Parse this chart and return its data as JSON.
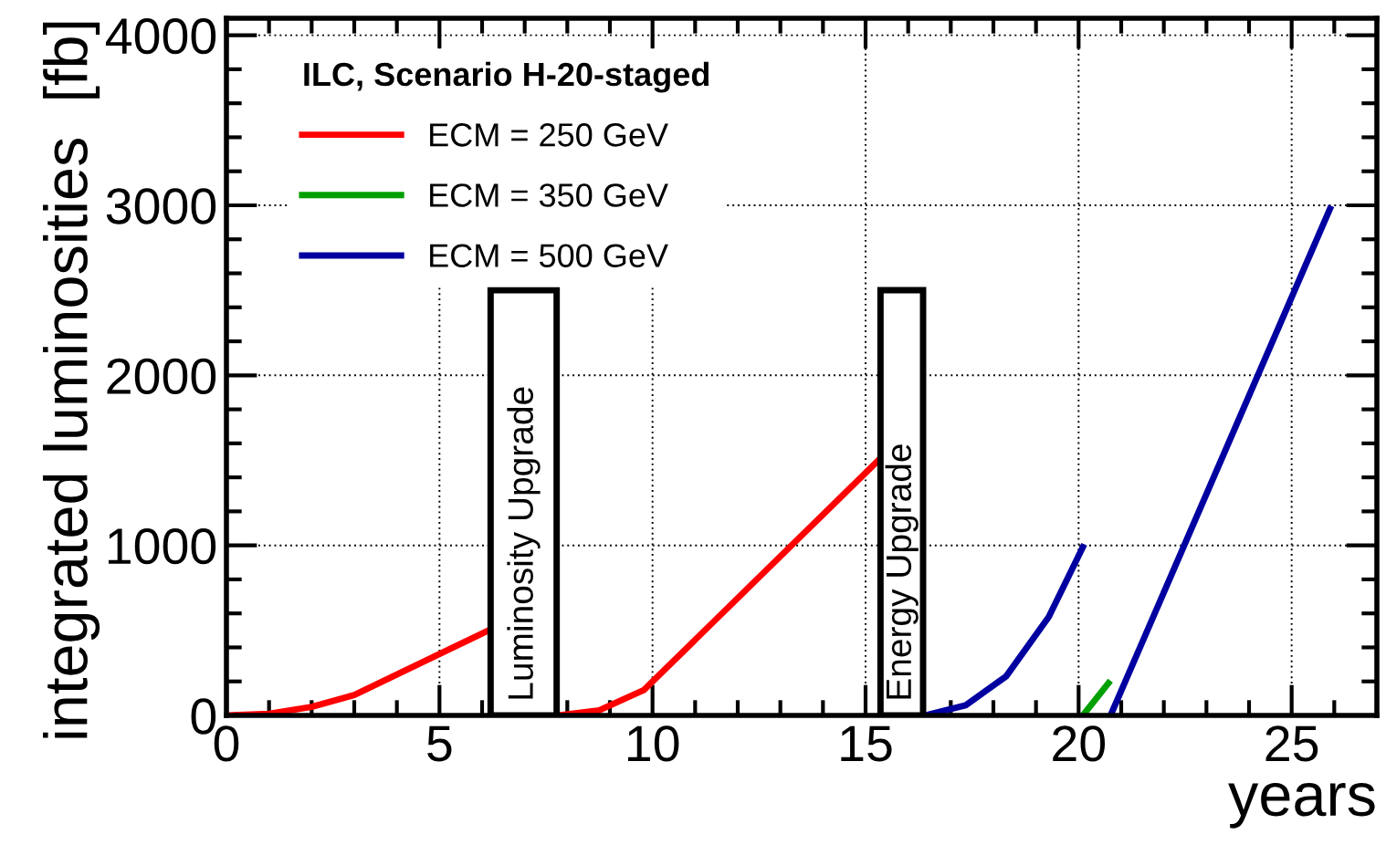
{
  "chart_data": {
    "type": "line",
    "xlabel": "years",
    "ylabel": "integrated luminosities  [fb]",
    "legend_title": "ILC, Scenario H-20-staged",
    "series": [
      {
        "name": "ECM = 250 GeV",
        "color": "#ff0000",
        "x": [
          0,
          1,
          2,
          3,
          6.15,
          null,
          7.8,
          8.75,
          9.8,
          15.3
        ],
        "values": [
          0,
          10,
          50,
          120,
          500,
          null,
          0,
          30,
          150,
          1500
        ]
      },
      {
        "name": "ECM = 350 GeV",
        "color": "#00a000",
        "x": [
          20.1,
          20.7
        ],
        "values": [
          0,
          190
        ]
      },
      {
        "name": "ECM = 500 GeV",
        "color": "#0000a0",
        "x": [
          16.4,
          17.35,
          18.3,
          19.3,
          20.1,
          null,
          20.75,
          25.9
        ],
        "values": [
          0,
          60,
          230,
          580,
          990,
          null,
          0,
          2980
        ]
      }
    ],
    "bands": [
      {
        "axis": "x",
        "from": 6.2,
        "to": 7.75,
        "label": "Luminosity Upgrade",
        "color": "#000000"
      },
      {
        "axis": "x",
        "from": 15.35,
        "to": 16.35,
        "label": "Energy Upgrade",
        "color": "#000000"
      }
    ],
    "xlim": [
      0,
      27
    ],
    "xticks": [
      0,
      5,
      10,
      15,
      20,
      25
    ],
    "ylim": [
      0,
      4100
    ],
    "yticks": [
      0,
      1000,
      2000,
      3000,
      4000
    ],
    "grid": true,
    "legend": "top left",
    "marker": "none",
    "line_style": "solid"
  }
}
